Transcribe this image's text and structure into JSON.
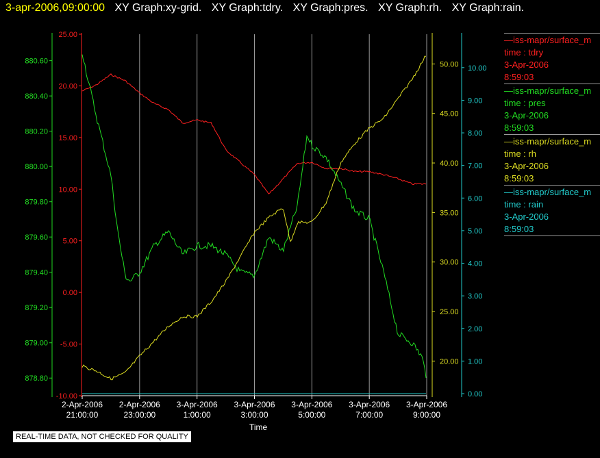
{
  "header": {
    "timestamp": "3-apr-2006,09:00:00",
    "graph_titles": [
      "XY Graph:xy-grid.",
      "XY Graph:tdry.",
      "XY Graph:pres.",
      "XY Graph:rh.",
      "XY Graph:rain."
    ]
  },
  "legend": [
    {
      "source": "—iss-mapr/surface_m",
      "field": "time : tdry",
      "date": "3-Apr-2006",
      "time": "8:59:03",
      "color": "#ff2020"
    },
    {
      "source": "—iss-mapr/surface_m",
      "field": "time : pres",
      "date": "3-Apr-2006",
      "time": "8:59:03",
      "color": "#22dd22"
    },
    {
      "source": "—iss-mapr/surface_m",
      "field": "time : rh",
      "date": "3-Apr-2006",
      "time": "8:59:03",
      "color": "#dddd22"
    },
    {
      "source": "—iss-mapr/surface_m",
      "field": "time : rain",
      "date": "3-Apr-2006",
      "time": "8:59:03",
      "color": "#22cccc"
    }
  ],
  "notice": "REAL-TIME DATA, NOT CHECKED FOR QUALITY",
  "chart_data": {
    "type": "line",
    "xlabel": "Time",
    "x_ticks": [
      {
        "d": "2-Apr-2006",
        "t": "21:00:00"
      },
      {
        "d": "2-Apr-2006",
        "t": "23:00:00"
      },
      {
        "d": "3-Apr-2006",
        "t": "1:00:00"
      },
      {
        "d": "3-Apr-2006",
        "t": "3:00:00"
      },
      {
        "d": "3-Apr-2006",
        "t": "5:00:00"
      },
      {
        "d": "3-Apr-2006",
        "t": "7:00:00"
      },
      {
        "d": "3-Apr-2006",
        "t": "9:00:00"
      }
    ],
    "x_range": [
      "2-Apr-2006 21:00:00",
      "3-Apr-2006 9:00:00"
    ],
    "grid": "vertical",
    "axes": [
      {
        "id": "tdry",
        "color": "#ff2020",
        "ylim": [
          -10,
          25
        ],
        "ticks": [
          "25.00",
          "20.00",
          "15.00",
          "10.00",
          "5.00",
          "0.00",
          "-5.00",
          "-10.00"
        ]
      },
      {
        "id": "pres",
        "color": "#22dd22",
        "ylim": [
          878.7,
          880.75
        ],
        "ticks": [
          "880.60",
          "880.40",
          "880.20",
          "880.00",
          "879.80",
          "879.60",
          "879.40",
          "879.20",
          "879.00",
          "878.80"
        ]
      },
      {
        "id": "rh",
        "color": "#dddd22",
        "ylim": [
          16.5,
          53
        ],
        "ticks": [
          "50.00",
          "45.00",
          "40.00",
          "35.00",
          "30.00",
          "25.00",
          "20.00"
        ]
      },
      {
        "id": "rain",
        "color": "#22cccc",
        "ylim": [
          0,
          10.5
        ],
        "ticks": [
          "10.00",
          "9.00",
          "8.00",
          "7.00",
          "6.00",
          "5.00",
          "4.00",
          "3.00",
          "2.00",
          "1.00",
          "0.00"
        ]
      }
    ],
    "series": [
      {
        "axis": "tdry",
        "color": "#ff2020",
        "x": [
          "2-Apr-2006 21:00",
          "2-Apr-2006 21:30",
          "2-Apr-2006 22:00",
          "2-Apr-2006 22:30",
          "2-Apr-2006 23:00",
          "2-Apr-2006 23:30",
          "3-Apr-2006 0:00",
          "3-Apr-2006 0:30",
          "3-Apr-2006 1:00",
          "3-Apr-2006 1:30",
          "3-Apr-2006 2:00",
          "3-Apr-2006 2:30",
          "3-Apr-2006 3:00",
          "3-Apr-2006 3:30",
          "3-Apr-2006 4:00",
          "3-Apr-2006 4:30",
          "3-Apr-2006 5:00",
          "3-Apr-2006 5:30",
          "3-Apr-2006 6:00",
          "3-Apr-2006 6:30",
          "3-Apr-2006 7:00",
          "3-Apr-2006 7:30",
          "3-Apr-2006 8:00",
          "3-Apr-2006 8:30",
          "3-Apr-2006 9:00"
        ],
        "y": [
          19.5,
          20.1,
          21.1,
          20.5,
          19.3,
          18.3,
          17.7,
          16.4,
          16.7,
          16.4,
          13.8,
          12.6,
          11.4,
          9.5,
          11.0,
          12.5,
          12.6,
          12.0,
          12.0,
          11.7,
          11.7,
          11.4,
          11.0,
          10.5,
          10.5
        ]
      },
      {
        "axis": "pres",
        "color": "#22dd22",
        "x": [
          "2-Apr-2006 21:00",
          "2-Apr-2006 21:10",
          "2-Apr-2006 21:30",
          "2-Apr-2006 22:00",
          "2-Apr-2006 22:15",
          "2-Apr-2006 22:30",
          "2-Apr-2006 22:40",
          "2-Apr-2006 23:00",
          "2-Apr-2006 23:30",
          "3-Apr-2006 0:00",
          "3-Apr-2006 0:30",
          "3-Apr-2006 1:00",
          "3-Apr-2006 1:30",
          "3-Apr-2006 2:00",
          "3-Apr-2006 2:30",
          "3-Apr-2006 3:00",
          "3-Apr-2006 3:30",
          "3-Apr-2006 4:00",
          "3-Apr-2006 4:30",
          "3-Apr-2006 4:50",
          "3-Apr-2006 5:00",
          "3-Apr-2006 5:30",
          "3-Apr-2006 6:00",
          "3-Apr-2006 6:30",
          "3-Apr-2006 7:00",
          "3-Apr-2006 7:30",
          "3-Apr-2006 8:00",
          "3-Apr-2006 8:30",
          "3-Apr-2006 8:50",
          "3-Apr-2006 9:00"
        ],
        "y": [
          880.65,
          880.52,
          880.28,
          879.95,
          879.62,
          879.38,
          879.35,
          879.4,
          879.55,
          879.63,
          879.5,
          879.55,
          879.55,
          879.5,
          879.4,
          879.38,
          879.6,
          879.52,
          879.78,
          880.18,
          880.12,
          880.05,
          879.9,
          879.75,
          879.7,
          879.4,
          879.05,
          879.0,
          878.92,
          878.8
        ]
      },
      {
        "axis": "rh",
        "color": "#dddd22",
        "x": [
          "2-Apr-2006 21:00",
          "2-Apr-2006 21:30",
          "2-Apr-2006 22:00",
          "2-Apr-2006 22:30",
          "2-Apr-2006 23:00",
          "2-Apr-2006 23:30",
          "3-Apr-2006 0:00",
          "3-Apr-2006 0:30",
          "3-Apr-2006 1:00",
          "3-Apr-2006 1:30",
          "3-Apr-2006 2:00",
          "3-Apr-2006 2:30",
          "3-Apr-2006 3:00",
          "3-Apr-2006 3:30",
          "3-Apr-2006 4:00",
          "3-Apr-2006 4:15",
          "3-Apr-2006 4:30",
          "3-Apr-2006 5:00",
          "3-Apr-2006 5:30",
          "3-Apr-2006 6:00",
          "3-Apr-2006 6:30",
          "3-Apr-2006 7:00",
          "3-Apr-2006 7:30",
          "3-Apr-2006 8:00",
          "3-Apr-2006 8:30",
          "3-Apr-2006 9:00"
        ],
        "y": [
          19.5,
          19.0,
          18.2,
          18.8,
          20.5,
          22.0,
          23.5,
          24.5,
          24.5,
          26.0,
          28.0,
          30.5,
          33.0,
          34.5,
          35.5,
          32.0,
          34.0,
          34.0,
          36.0,
          40.0,
          42.0,
          43.5,
          44.5,
          46.5,
          48.5,
          51.0
        ]
      },
      {
        "axis": "rain",
        "color": "#22cccc",
        "x": [
          "2-Apr-2006 21:00",
          "3-Apr-2006 9:00"
        ],
        "y": [
          0.0,
          0.0
        ]
      }
    ]
  }
}
